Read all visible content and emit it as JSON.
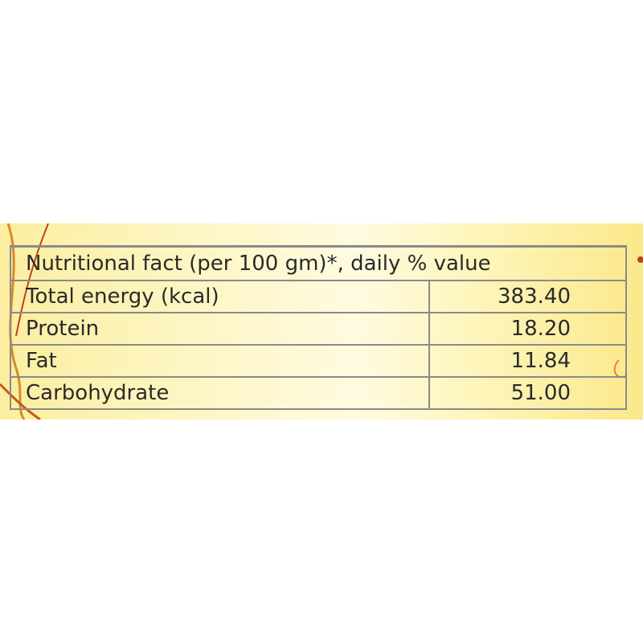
{
  "table": {
    "header": "Nutritional fact (per 100 gm)*, daily % value",
    "rows": [
      [
        "Total energy (kcal)",
        "383.40"
      ],
      [
        "Protein",
        "18.20"
      ],
      [
        "Fat",
        "11.84"
      ],
      [
        "Carbohydrate",
        "51.00"
      ]
    ]
  }
}
